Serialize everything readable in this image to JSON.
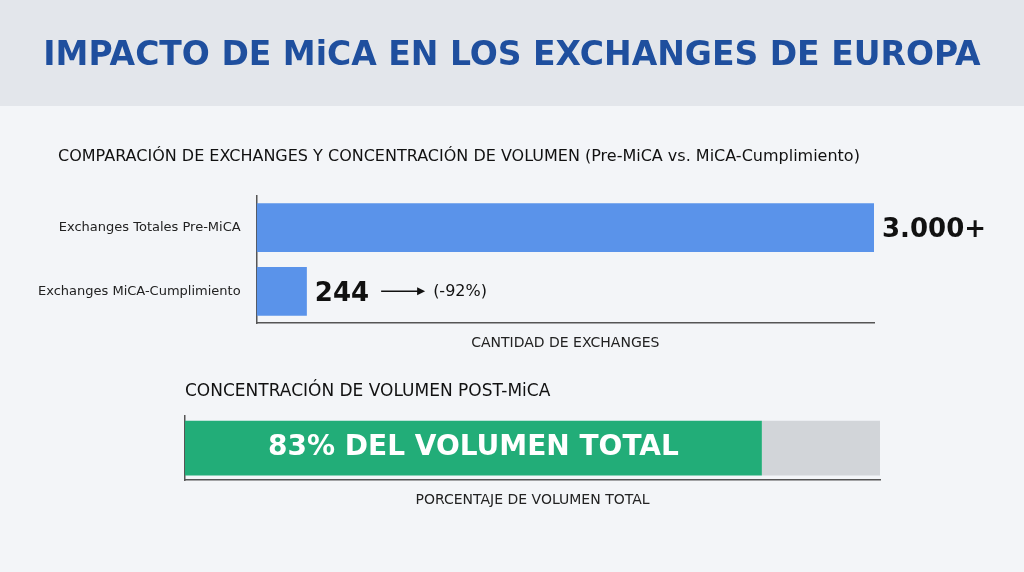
{
  "chart_data": [
    {
      "type": "bar",
      "title": "IMPACTO DE MiCA EN LOS EXCHANGES DE EUROPA",
      "subtitle": "COMPARACIÓN DE EXCHANGES Y CONCENTRACIÓN DE VOLUMEN (Pre-MiCA vs. MiCA-Cumplimiento)",
      "orientation": "horizontal",
      "categories": [
        "Exchanges Totales Pre-MiCA",
        "Exchanges MiCA-Cumplimiento"
      ],
      "values": [
        3000,
        244
      ],
      "value_labels": [
        "3.000+",
        "244"
      ],
      "color": "#5a93ea",
      "xlabel": "CANTIDAD DE EXCHANGES",
      "tick_labels": "y",
      "annotations": [
        "(-92%)"
      ]
    },
    {
      "type": "bar",
      "title": "CONCENTRACIÓN DE VOLUMEN POST-MiCA",
      "orientation": "horizontal",
      "stacked": true,
      "categories": [
        null
      ],
      "xlim": [
        0,
        100
      ],
      "xlabel": "PORCENTAJE DE VOLUMEN TOTAL",
      "tick_labels": false,
      "series": [
        {
          "color": "#22ad78",
          "values": [
            83
          ],
          "value_labels": [
            "83% DEL VOLUMEN TOTAL"
          ]
        },
        {
          "color": "#d2d5d9",
          "values": [
            17
          ]
        }
      ]
    }
  ]
}
